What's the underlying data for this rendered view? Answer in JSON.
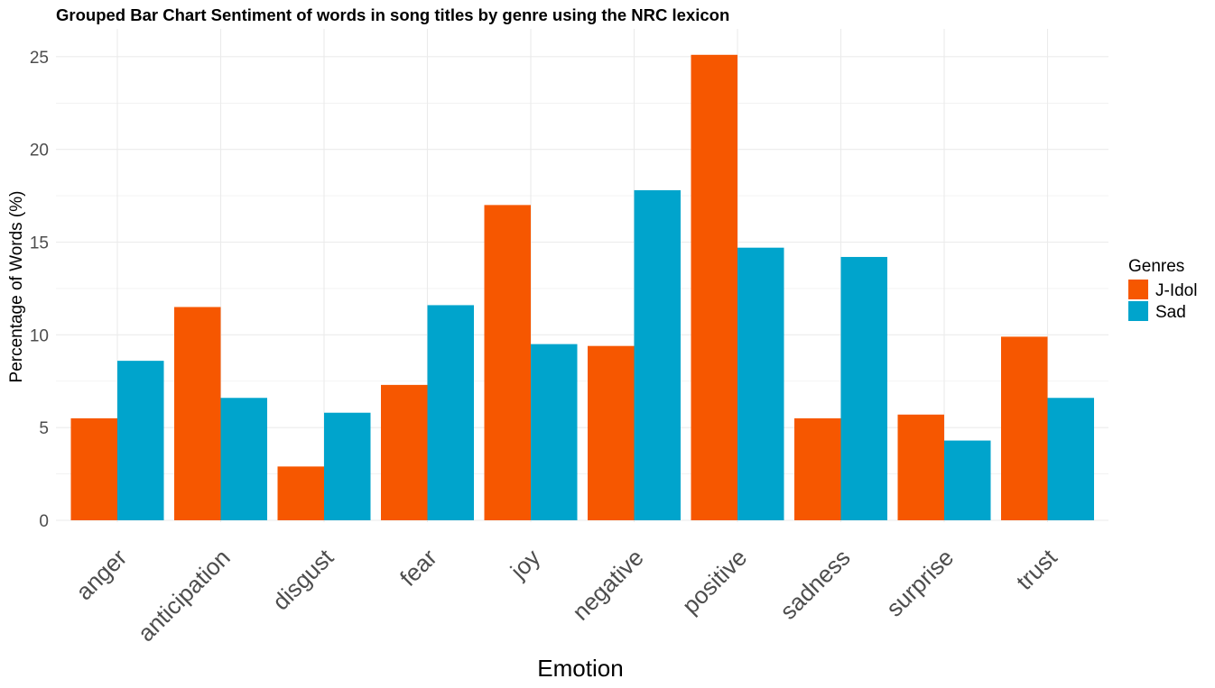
{
  "chart_data": {
    "type": "bar",
    "title": "Grouped Bar Chart Sentiment of words in song titles by genre using the NRC lexicon",
    "xlabel": "Emotion",
    "ylabel": "Percentage of Words (%)",
    "ylim": [
      0,
      26.5
    ],
    "yticks": [
      0,
      5,
      10,
      15,
      20,
      25
    ],
    "grid": true,
    "legend_position": "right",
    "legend_title": "Genres",
    "categories": [
      "anger",
      "anticipation",
      "disgust",
      "fear",
      "joy",
      "negative",
      "positive",
      "sadness",
      "surprise",
      "trust"
    ],
    "series": [
      {
        "name": "J-Idol",
        "color": "#f65700",
        "values": [
          5.5,
          11.5,
          2.9,
          7.3,
          17.0,
          9.4,
          25.1,
          5.5,
          5.7,
          9.9
        ]
      },
      {
        "name": "Sad",
        "color": "#00a4cc",
        "values": [
          8.6,
          6.6,
          5.8,
          11.6,
          9.5,
          17.8,
          14.7,
          14.2,
          4.3,
          6.6
        ]
      }
    ]
  }
}
